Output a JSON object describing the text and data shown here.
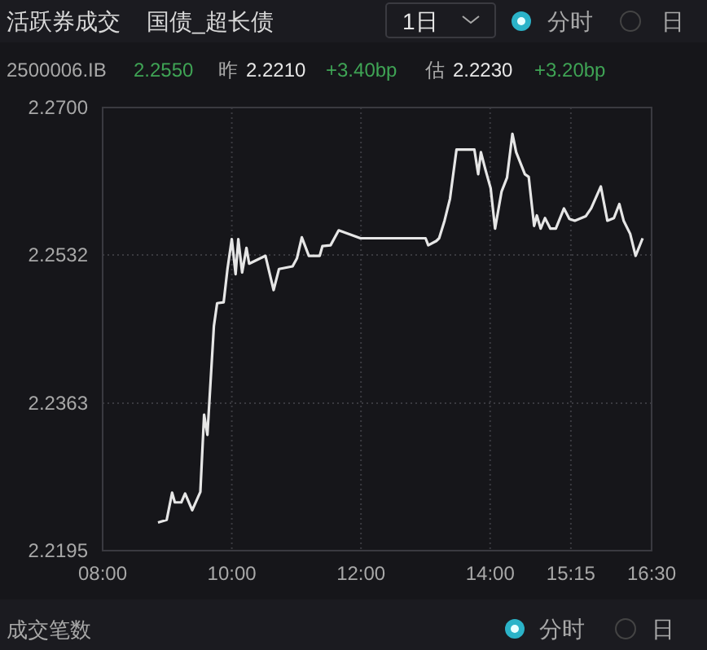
{
  "chart_data": {
    "type": "line",
    "title": "活跃券成交",
    "subtitle": "国债_超长债",
    "annotations": [
      "1日",
      "分时",
      "日",
      "2500006.IB",
      "2.2550",
      "昨",
      "2.2210",
      "+3.40bp",
      "估",
      "2.2230",
      "+3.20bp",
      "成交笔数",
      "分时",
      "日"
    ],
    "series": [
      {
        "color": "#e6e6e6",
        "x": [
          8.857,
          8.992,
          9.076,
          9.118,
          9.218,
          9.277,
          9.387,
          9.513,
          9.571,
          9.622,
          9.723,
          9.773,
          9.874,
          9.933,
          10.0,
          10.059,
          10.101,
          10.16,
          10.227,
          10.269,
          10.437,
          10.521,
          10.647,
          10.731,
          10.941,
          11.008,
          11.084,
          11.193,
          11.361,
          11.403,
          11.529,
          11.655,
          11.992,
          13.0,
          13.042,
          13.168,
          13.21,
          13.294,
          13.378,
          13.479,
          13.756,
          13.815,
          13.857,
          13.924,
          14.008,
          14.076,
          14.176,
          14.261,
          14.345,
          14.403,
          14.538,
          14.597,
          14.681,
          14.723,
          14.782,
          14.849,
          14.933,
          15.017,
          15.143,
          15.227,
          15.311,
          15.479,
          15.563,
          15.714,
          15.815,
          15.916,
          16.0,
          16.067,
          16.168,
          16.252,
          16.361
        ],
        "values": [
          2.2227,
          2.223,
          2.2261,
          2.225,
          2.225,
          2.226,
          2.2241,
          2.2262,
          2.235,
          2.2327,
          2.2451,
          2.2477,
          2.2478,
          2.2516,
          2.255,
          2.251,
          2.255,
          2.2512,
          2.254,
          2.2522,
          2.2528,
          2.2531,
          2.2492,
          2.2516,
          2.2519,
          2.2528,
          2.2552,
          2.2531,
          2.2531,
          2.2542,
          2.2543,
          2.256,
          2.2551,
          2.2551,
          2.2543,
          2.2548,
          2.2551,
          2.2571,
          2.2596,
          2.2652,
          2.2652,
          2.2624,
          2.2649,
          2.263,
          2.2608,
          2.2562,
          2.2604,
          2.262,
          2.267,
          2.2649,
          2.2624,
          2.2621,
          2.2565,
          2.2577,
          2.2562,
          2.2574,
          2.2562,
          2.2562,
          2.2585,
          2.2573,
          2.2571,
          2.2576,
          2.2585,
          2.261,
          2.2571,
          2.2574,
          2.259,
          2.2571,
          2.2556,
          2.2531,
          2.2551
        ]
      }
    ],
    "xlim": [
      8,
      16.5
    ],
    "xticks": [
      {
        "value": 8,
        "label": "08:00"
      },
      {
        "value": 10,
        "label": "10:00"
      },
      {
        "value": 12,
        "label": "12:00"
      },
      {
        "value": 14,
        "label": "14:00"
      },
      {
        "value": 15.25,
        "label": "15:15"
      },
      {
        "value": 16.5,
        "label": "16:30"
      }
    ],
    "ylim": [
      2.2195,
      2.27
    ],
    "yticks": [
      {
        "value": 2.2195,
        "label": "2.2195"
      },
      {
        "value": 2.2363,
        "label": "2.2363"
      },
      {
        "value": 2.2532,
        "label": "2.2532"
      },
      {
        "value": 2.27,
        "label": "2.2700"
      }
    ],
    "grid": true,
    "marker": "none",
    "line_style": "solid"
  }
}
